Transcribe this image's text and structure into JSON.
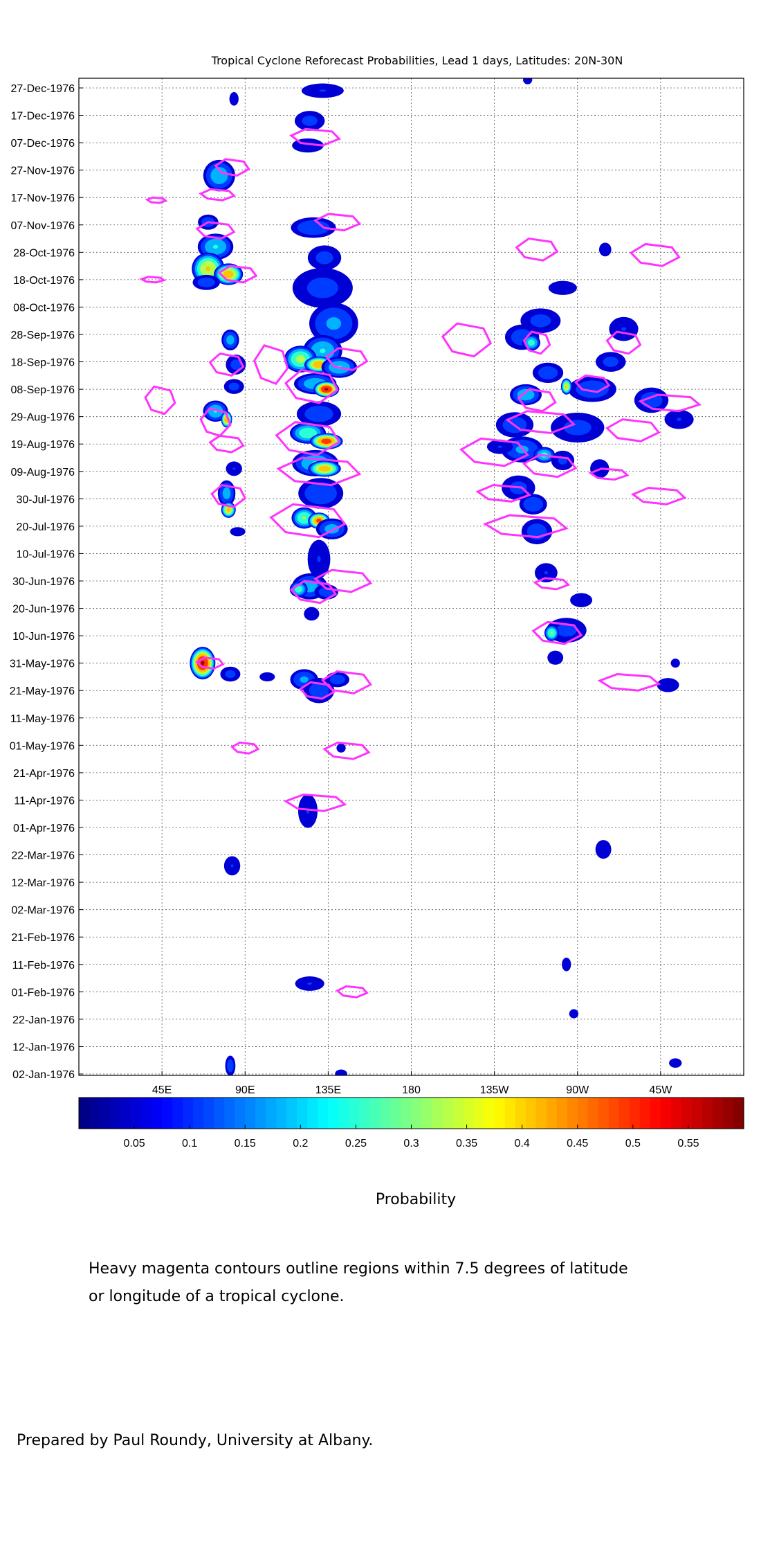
{
  "title": "Tropical Cyclone Reforecast Probabilities, Lead 1 days, Latitudes: 20N-30N",
  "colorbar_label": "Probability",
  "note_line1": "Heavy magenta contours outline regions within 7.5 degrees of latitude",
  "note_line2": "or longitude of a tropical cyclone.",
  "credit": "Prepared by Paul Roundy, University at Albany.",
  "colors": {
    "contour": "#ff33ff",
    "frame": "#000000",
    "grid": "#555555"
  },
  "chart_data": {
    "type": "heatmap",
    "title": "Tropical Cyclone Reforecast Probabilities, Lead 1 days, Latitudes: 20N-30N",
    "xlabel": "",
    "ylabel": "",
    "xlim_deg_east": [
      0,
      360
    ],
    "x_ticks": [
      {
        "lon": 45,
        "label": "45E"
      },
      {
        "lon": 90,
        "label": "90E"
      },
      {
        "lon": 135,
        "label": "135E"
      },
      {
        "lon": 180,
        "label": "180"
      },
      {
        "lon": 225,
        "label": "135W"
      },
      {
        "lon": 270,
        "label": "90W"
      },
      {
        "lon": 315,
        "label": "45W"
      }
    ],
    "y_ticks": [
      "27-Dec-1976",
      "17-Dec-1976",
      "07-Dec-1976",
      "27-Nov-1976",
      "17-Nov-1976",
      "07-Nov-1976",
      "28-Oct-1976",
      "18-Oct-1976",
      "08-Oct-1976",
      "28-Sep-1976",
      "18-Sep-1976",
      "08-Sep-1976",
      "29-Aug-1976",
      "19-Aug-1976",
      "09-Aug-1976",
      "30-Jul-1976",
      "20-Jul-1976",
      "10-Jul-1976",
      "30-Jun-1976",
      "20-Jun-1976",
      "10-Jun-1976",
      "31-May-1976",
      "21-May-1976",
      "11-May-1976",
      "01-May-1976",
      "21-Apr-1976",
      "11-Apr-1976",
      "01-Apr-1976",
      "22-Mar-1976",
      "12-Mar-1976",
      "02-Mar-1976",
      "21-Feb-1976",
      "11-Feb-1976",
      "01-Feb-1976",
      "22-Jan-1976",
      "12-Jan-1976",
      "02-Jan-1976"
    ],
    "grid": true,
    "colorbar": {
      "range": [
        0,
        0.6
      ],
      "ticks": [
        0.05,
        0.1,
        0.15,
        0.2,
        0.25,
        0.3,
        0.35,
        0.4,
        0.45,
        0.5,
        0.55
      ],
      "colormap": "jet"
    },
    "blobs": [
      {
        "lon": 67,
        "date": "1976-05-31",
        "dlon": 7,
        "ddays": 6,
        "p": 0.55
      },
      {
        "lon": 82,
        "date": "1976-05-27",
        "dlon": 6,
        "ddays": 3,
        "p": 0.1
      },
      {
        "lon": 102,
        "date": "1976-05-26",
        "dlon": 5,
        "ddays": 2,
        "p": 0.06
      },
      {
        "lon": 76,
        "date": "1976-11-25",
        "dlon": 9,
        "ddays": 6,
        "p": 0.2
      },
      {
        "lon": 70,
        "date": "1976-11-08",
        "dlon": 6,
        "ddays": 3,
        "p": 0.12
      },
      {
        "lon": 74,
        "date": "1976-10-30",
        "dlon": 10,
        "ddays": 5,
        "p": 0.22
      },
      {
        "lon": 70,
        "date": "1976-10-22",
        "dlon": 9,
        "ddays": 6,
        "p": 0.38
      },
      {
        "lon": 81,
        "date": "1976-10-20",
        "dlon": 8,
        "ddays": 4,
        "p": 0.42
      },
      {
        "lon": 69,
        "date": "1976-10-17",
        "dlon": 8,
        "ddays": 3,
        "p": 0.12
      },
      {
        "lon": 82,
        "date": "1976-09-26",
        "dlon": 5,
        "ddays": 4,
        "p": 0.18
      },
      {
        "lon": 85,
        "date": "1976-09-17",
        "dlon": 6,
        "ddays": 4,
        "p": 0.1
      },
      {
        "lon": 84,
        "date": "1976-09-09",
        "dlon": 6,
        "ddays": 3,
        "p": 0.1
      },
      {
        "lon": 74,
        "date": "1976-08-31",
        "dlon": 7,
        "ddays": 4,
        "p": 0.22
      },
      {
        "lon": 80,
        "date": "1976-08-28",
        "dlon": 3,
        "ddays": 3,
        "p": 0.45
      },
      {
        "lon": 84,
        "date": "1976-08-10",
        "dlon": 5,
        "ddays": 3,
        "p": 0.08
      },
      {
        "lon": 80,
        "date": "1976-08-01",
        "dlon": 5,
        "ddays": 5,
        "p": 0.18
      },
      {
        "lon": 81,
        "date": "1976-07-26",
        "dlon": 4,
        "ddays": 3,
        "p": 0.4
      },
      {
        "lon": 86,
        "date": "1976-07-18",
        "dlon": 5,
        "ddays": 2,
        "p": 0.06
      },
      {
        "lon": 84,
        "date": "1976-12-23",
        "dlon": 3,
        "ddays": 3,
        "p": 0.06
      },
      {
        "lon": 83,
        "date": "1976-03-18",
        "dlon": 5,
        "ddays": 4,
        "p": 0.08
      },
      {
        "lon": 82,
        "date": "1976-01-05",
        "dlon": 3,
        "ddays": 4,
        "p": 0.12
      },
      {
        "lon": 132,
        "date": "1976-12-26",
        "dlon": 13,
        "ddays": 3,
        "p": 0.08
      },
      {
        "lon": 125,
        "date": "1976-12-15",
        "dlon": 9,
        "ddays": 4,
        "p": 0.1
      },
      {
        "lon": 124,
        "date": "1976-12-06",
        "dlon": 10,
        "ddays": 3,
        "p": 0.07
      },
      {
        "lon": 127,
        "date": "1976-11-06",
        "dlon": 13,
        "ddays": 4,
        "p": 0.14
      },
      {
        "lon": 133,
        "date": "1976-10-26",
        "dlon": 10,
        "ddays": 5,
        "p": 0.1
      },
      {
        "lon": 132,
        "date": "1976-10-15",
        "dlon": 18,
        "ddays": 8,
        "p": 0.1
      },
      {
        "lon": 138,
        "date": "1976-10-02",
        "dlon": 14,
        "ddays": 8,
        "p": 0.16
      },
      {
        "lon": 132,
        "date": "1976-09-22",
        "dlon": 11,
        "ddays": 6,
        "p": 0.22
      },
      {
        "lon": 120,
        "date": "1976-09-19",
        "dlon": 9,
        "ddays": 5,
        "p": 0.32
      },
      {
        "lon": 130,
        "date": "1976-09-17",
        "dlon": 8,
        "ddays": 3,
        "p": 0.45
      },
      {
        "lon": 141,
        "date": "1976-09-16",
        "dlon": 10,
        "ddays": 4,
        "p": 0.22
      },
      {
        "lon": 128,
        "date": "1976-09-10",
        "dlon": 12,
        "ddays": 4,
        "p": 0.2
      },
      {
        "lon": 134,
        "date": "1976-09-08",
        "dlon": 7,
        "ddays": 3,
        "p": 0.55
      },
      {
        "lon": 130,
        "date": "1976-08-30",
        "dlon": 13,
        "ddays": 5,
        "p": 0.12
      },
      {
        "lon": 124,
        "date": "1976-08-23",
        "dlon": 10,
        "ddays": 4,
        "p": 0.28
      },
      {
        "lon": 134,
        "date": "1976-08-20",
        "dlon": 9,
        "ddays": 3,
        "p": 0.5
      },
      {
        "lon": 128,
        "date": "1976-08-12",
        "dlon": 13,
        "ddays": 5,
        "p": 0.22
      },
      {
        "lon": 133,
        "date": "1976-08-10",
        "dlon": 9,
        "ddays": 3,
        "p": 0.42
      },
      {
        "lon": 131,
        "date": "1976-08-01",
        "dlon": 13,
        "ddays": 6,
        "p": 0.14
      },
      {
        "lon": 122,
        "date": "1976-07-23",
        "dlon": 7,
        "ddays": 4,
        "p": 0.3
      },
      {
        "lon": 130,
        "date": "1976-07-22",
        "dlon": 6,
        "ddays": 3,
        "p": 0.48
      },
      {
        "lon": 137,
        "date": "1976-07-19",
        "dlon": 9,
        "ddays": 4,
        "p": 0.18
      },
      {
        "lon": 130,
        "date": "1976-07-08",
        "dlon": 7,
        "ddays": 8,
        "p": 0.08
      },
      {
        "lon": 125,
        "date": "1976-06-28",
        "dlon": 10,
        "ddays": 5,
        "p": 0.18
      },
      {
        "lon": 119,
        "date": "1976-06-27",
        "dlon": 5,
        "ddays": 3,
        "p": 0.26
      },
      {
        "lon": 134,
        "date": "1976-06-26",
        "dlon": 7,
        "ddays": 3,
        "p": 0.12
      },
      {
        "lon": 126,
        "date": "1976-06-18",
        "dlon": 5,
        "ddays": 3,
        "p": 0.06
      },
      {
        "lon": 122,
        "date": "1976-05-25",
        "dlon": 8,
        "ddays": 4,
        "p": 0.16
      },
      {
        "lon": 130,
        "date": "1976-05-21",
        "dlon": 9,
        "ddays": 5,
        "p": 0.12
      },
      {
        "lon": 140,
        "date": "1976-05-25",
        "dlon": 7,
        "ddays": 3,
        "p": 0.12
      },
      {
        "lon": 124,
        "date": "1976-04-07",
        "dlon": 6,
        "ddays": 7,
        "p": 0.08
      },
      {
        "lon": 125,
        "date": "1976-02-04",
        "dlon": 9,
        "ddays": 3,
        "p": 0.08
      },
      {
        "lon": 142,
        "date": "1976-01-02",
        "dlon": 4,
        "ddays": 2,
        "p": 0.06
      },
      {
        "lon": 142,
        "date": "1976-04-30",
        "dlon": 3,
        "ddays": 2,
        "p": 0.06
      },
      {
        "lon": 243,
        "date": "1976-12-30",
        "dlon": 3,
        "ddays": 2,
        "p": 0.06
      },
      {
        "lon": 262,
        "date": "1976-10-15",
        "dlon": 9,
        "ddays": 3,
        "p": 0.07
      },
      {
        "lon": 250,
        "date": "1976-10-03",
        "dlon": 12,
        "ddays": 5,
        "p": 0.1
      },
      {
        "lon": 240,
        "date": "1976-09-27",
        "dlon": 10,
        "ddays": 5,
        "p": 0.12
      },
      {
        "lon": 245,
        "date": "1976-09-25",
        "dlon": 5,
        "ddays": 3,
        "p": 0.25
      },
      {
        "lon": 295,
        "date": "1976-09-30",
        "dlon": 9,
        "ddays": 5,
        "p": 0.08
      },
      {
        "lon": 288,
        "date": "1976-09-18",
        "dlon": 9,
        "ddays": 4,
        "p": 0.1
      },
      {
        "lon": 254,
        "date": "1976-09-14",
        "dlon": 9,
        "ddays": 4,
        "p": 0.12
      },
      {
        "lon": 278,
        "date": "1976-09-08",
        "dlon": 14,
        "ddays": 5,
        "p": 0.13
      },
      {
        "lon": 264,
        "date": "1976-09-09",
        "dlon": 3,
        "ddays": 3,
        "p": 0.38
      },
      {
        "lon": 242,
        "date": "1976-09-06",
        "dlon": 9,
        "ddays": 4,
        "p": 0.2
      },
      {
        "lon": 310,
        "date": "1976-09-04",
        "dlon": 10,
        "ddays": 5,
        "p": 0.12
      },
      {
        "lon": 325,
        "date": "1976-08-28",
        "dlon": 9,
        "ddays": 4,
        "p": 0.08
      },
      {
        "lon": 270,
        "date": "1976-08-25",
        "dlon": 16,
        "ddays": 6,
        "p": 0.1
      },
      {
        "lon": 236,
        "date": "1976-08-26",
        "dlon": 11,
        "ddays": 5,
        "p": 0.12
      },
      {
        "lon": 240,
        "date": "1976-08-17",
        "dlon": 12,
        "ddays": 5,
        "p": 0.16
      },
      {
        "lon": 252,
        "date": "1976-08-15",
        "dlon": 6,
        "ddays": 3,
        "p": 0.24
      },
      {
        "lon": 262,
        "date": "1976-08-13",
        "dlon": 7,
        "ddays": 4,
        "p": 0.09
      },
      {
        "lon": 282,
        "date": "1976-08-10",
        "dlon": 6,
        "ddays": 4,
        "p": 0.07
      },
      {
        "lon": 228,
        "date": "1976-08-18",
        "dlon": 8,
        "ddays": 3,
        "p": 0.08
      },
      {
        "lon": 238,
        "date": "1976-08-03",
        "dlon": 10,
        "ddays": 5,
        "p": 0.1
      },
      {
        "lon": 246,
        "date": "1976-07-28",
        "dlon": 8,
        "ddays": 4,
        "p": 0.14
      },
      {
        "lon": 248,
        "date": "1976-07-18",
        "dlon": 9,
        "ddays": 5,
        "p": 0.12
      },
      {
        "lon": 253,
        "date": "1976-07-03",
        "dlon": 7,
        "ddays": 4,
        "p": 0.08
      },
      {
        "lon": 272,
        "date": "1976-06-23",
        "dlon": 7,
        "ddays": 3,
        "p": 0.07
      },
      {
        "lon": 264,
        "date": "1976-06-12",
        "dlon": 12,
        "ddays": 5,
        "p": 0.1
      },
      {
        "lon": 256,
        "date": "1976-06-11",
        "dlon": 4,
        "ddays": 3,
        "p": 0.3
      },
      {
        "lon": 258,
        "date": "1976-06-02",
        "dlon": 5,
        "ddays": 3,
        "p": 0.07
      },
      {
        "lon": 319,
        "date": "1976-05-23",
        "dlon": 7,
        "ddays": 3,
        "p": 0.07
      },
      {
        "lon": 323,
        "date": "1976-05-31",
        "dlon": 3,
        "ddays": 2,
        "p": 0.06
      },
      {
        "lon": 284,
        "date": "1976-03-24",
        "dlon": 5,
        "ddays": 4,
        "p": 0.07
      },
      {
        "lon": 264,
        "date": "1976-02-11",
        "dlon": 3,
        "ddays": 3,
        "p": 0.06
      },
      {
        "lon": 268,
        "date": "1976-01-24",
        "dlon": 3,
        "ddays": 2,
        "p": 0.06
      },
      {
        "lon": 323,
        "date": "1976-01-06",
        "dlon": 4,
        "ddays": 2,
        "p": 0.07
      },
      {
        "lon": 285,
        "date": "1976-10-29",
        "dlon": 4,
        "ddays": 3,
        "p": 0.06
      }
    ],
    "tc_contours": [
      {
        "lon": 83,
        "date": "1976-11-28",
        "dlon": 9,
        "ddays": 3
      },
      {
        "lon": 42,
        "date": "1976-11-16",
        "dlon": 5,
        "ddays": 1
      },
      {
        "lon": 75,
        "date": "1976-11-18",
        "dlon": 9,
        "ddays": 2
      },
      {
        "lon": 74,
        "date": "1976-11-05",
        "dlon": 10,
        "ddays": 3
      },
      {
        "lon": 86,
        "date": "1976-10-20",
        "dlon": 10,
        "ddays": 3
      },
      {
        "lon": 40,
        "date": "1976-10-18",
        "dlon": 6,
        "ddays": 1
      },
      {
        "lon": 80,
        "date": "1976-09-17",
        "dlon": 9,
        "ddays": 4
      },
      {
        "lon": 44,
        "date": "1976-09-04",
        "dlon": 8,
        "ddays": 5
      },
      {
        "lon": 74,
        "date": "1976-08-27",
        "dlon": 8,
        "ddays": 5
      },
      {
        "lon": 80,
        "date": "1976-08-19",
        "dlon": 9,
        "ddays": 3
      },
      {
        "lon": 81,
        "date": "1976-07-31",
        "dlon": 9,
        "ddays": 4
      },
      {
        "lon": 71,
        "date": "1976-05-31",
        "dlon": 7,
        "ddays": 2
      },
      {
        "lon": 90,
        "date": "1976-04-30",
        "dlon": 7,
        "ddays": 2
      },
      {
        "lon": 104,
        "date": "1976-09-17",
        "dlon": 9,
        "ddays": 7
      },
      {
        "lon": 126,
        "date": "1976-09-09",
        "dlon": 14,
        "ddays": 6
      },
      {
        "lon": 145,
        "date": "1976-09-19",
        "dlon": 11,
        "ddays": 4
      },
      {
        "lon": 124,
        "date": "1976-08-21",
        "dlon": 17,
        "ddays": 6
      },
      {
        "lon": 130,
        "date": "1976-08-09",
        "dlon": 22,
        "ddays": 5
      },
      {
        "lon": 124,
        "date": "1976-07-22",
        "dlon": 20,
        "ddays": 6
      },
      {
        "lon": 143,
        "date": "1976-06-30",
        "dlon": 15,
        "ddays": 4
      },
      {
        "lon": 127,
        "date": "1976-06-26",
        "dlon": 12,
        "ddays": 4
      },
      {
        "lon": 140,
        "date": "1976-11-08",
        "dlon": 12,
        "ddays": 3
      },
      {
        "lon": 128,
        "date": "1976-12-09",
        "dlon": 13,
        "ddays": 3
      },
      {
        "lon": 145,
        "date": "1976-05-24",
        "dlon": 13,
        "ddays": 4
      },
      {
        "lon": 129,
        "date": "1976-05-21",
        "dlon": 9,
        "ddays": 3
      },
      {
        "lon": 145,
        "date": "1976-04-29",
        "dlon": 12,
        "ddays": 3
      },
      {
        "lon": 128,
        "date": "1976-04-10",
        "dlon": 16,
        "ddays": 3
      },
      {
        "lon": 148,
        "date": "1976-02-01",
        "dlon": 8,
        "ddays": 2
      },
      {
        "lon": 248,
        "date": "1976-10-29",
        "dlon": 11,
        "ddays": 4
      },
      {
        "lon": 312,
        "date": "1976-10-27",
        "dlon": 13,
        "ddays": 4
      },
      {
        "lon": 210,
        "date": "1976-09-26",
        "dlon": 13,
        "ddays": 6
      },
      {
        "lon": 248,
        "date": "1976-09-25",
        "dlon": 7,
        "ddays": 4
      },
      {
        "lon": 295,
        "date": "1976-09-25",
        "dlon": 9,
        "ddays": 4
      },
      {
        "lon": 278,
        "date": "1976-09-10",
        "dlon": 9,
        "ddays": 3
      },
      {
        "lon": 248,
        "date": "1976-09-04",
        "dlon": 10,
        "ddays": 4
      },
      {
        "lon": 320,
        "date": "1976-09-03",
        "dlon": 16,
        "ddays": 3
      },
      {
        "lon": 250,
        "date": "1976-08-27",
        "dlon": 18,
        "ddays": 4
      },
      {
        "lon": 300,
        "date": "1976-08-24",
        "dlon": 14,
        "ddays": 4
      },
      {
        "lon": 225,
        "date": "1976-08-16",
        "dlon": 18,
        "ddays": 5
      },
      {
        "lon": 255,
        "date": "1976-08-11",
        "dlon": 14,
        "ddays": 4
      },
      {
        "lon": 287,
        "date": "1976-08-08",
        "dlon": 10,
        "ddays": 2
      },
      {
        "lon": 230,
        "date": "1976-08-01",
        "dlon": 14,
        "ddays": 3
      },
      {
        "lon": 314,
        "date": "1976-07-31",
        "dlon": 14,
        "ddays": 3
      },
      {
        "lon": 242,
        "date": "1976-07-20",
        "dlon": 22,
        "ddays": 4
      },
      {
        "lon": 256,
        "date": "1976-06-29",
        "dlon": 9,
        "ddays": 2
      },
      {
        "lon": 259,
        "date": "1976-06-11",
        "dlon": 13,
        "ddays": 4
      },
      {
        "lon": 298,
        "date": "1976-05-24",
        "dlon": 16,
        "ddays": 3
      }
    ]
  }
}
